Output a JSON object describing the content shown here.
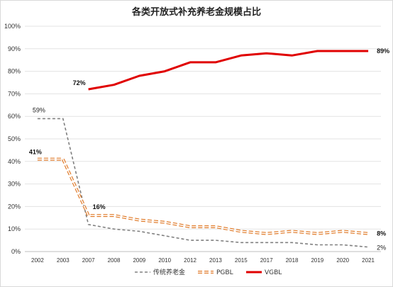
{
  "chart_data": {
    "type": "line",
    "title": "各类开放式补充养老金规模占比",
    "categories": [
      "2002",
      "2003",
      "2007",
      "2008",
      "2009",
      "2010",
      "2012",
      "2013",
      "2015",
      "2017",
      "2018",
      "2019",
      "2020",
      "2021"
    ],
    "y_ticks": [
      "0%",
      "10%",
      "20%",
      "30%",
      "40%",
      "50%",
      "60%",
      "70%",
      "80%",
      "90%",
      "100%"
    ],
    "ylim": [
      0,
      100
    ],
    "grid": true,
    "legend_position": "bottom",
    "series": [
      {
        "name": "传统养老金",
        "color": "#808080",
        "style": "dashed",
        "values": [
          59,
          59,
          12,
          10,
          9,
          7,
          5,
          5,
          4,
          4,
          4,
          3,
          3,
          2
        ]
      },
      {
        "name": "PGBL",
        "color": "#E07B2A",
        "style": "double-dashed",
        "values": [
          41,
          41,
          16,
          16,
          14,
          13,
          11,
          11,
          9,
          8,
          9,
          8,
          9,
          8
        ]
      },
      {
        "name": "VGBL",
        "color": "#E00000",
        "style": "solid",
        "values": [
          null,
          null,
          72,
          74,
          78,
          80,
          84,
          84,
          87,
          88,
          87,
          89,
          89,
          89
        ]
      }
    ],
    "annotations": [
      {
        "text": "59%",
        "series": 0,
        "index": 0,
        "weight": "normal"
      },
      {
        "text": "41%",
        "series": 1,
        "index": 0,
        "weight": "bold"
      },
      {
        "text": "72%",
        "series": 2,
        "index": 2,
        "weight": "bold"
      },
      {
        "text": "16%",
        "series": 1,
        "index": 2,
        "weight": "bold"
      },
      {
        "text": "89%",
        "series": 2,
        "index": 13,
        "weight": "bold"
      },
      {
        "text": "8%",
        "series": 1,
        "index": 13,
        "weight": "bold"
      },
      {
        "text": "2%",
        "series": 0,
        "index": 13,
        "weight": "normal"
      }
    ]
  }
}
